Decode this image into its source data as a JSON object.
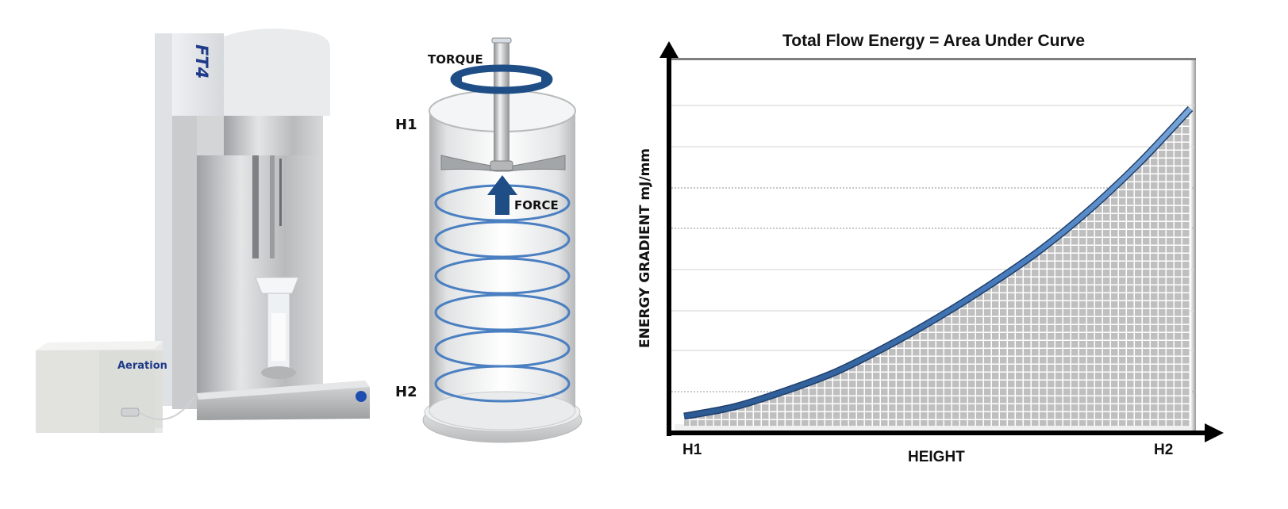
{
  "instrument": {
    "brand_label": "FT4",
    "accessory_label": "Aeration",
    "colors": {
      "body": "#e6e8ea",
      "steel": "#c4c6c8",
      "accent_blue": "#1f3a8a",
      "knob": "#1e4fb0"
    }
  },
  "cell_diagram": {
    "torque_label": "TORQUE",
    "force_label": "FORCE",
    "top_height_label": "H1",
    "bottom_height_label": "H2",
    "colors": {
      "helix": "#4a7fc1",
      "arrow": "#1f4e86",
      "vessel": "#d9dbdd"
    }
  },
  "chart_data": {
    "type": "area",
    "title": "Total Flow Energy = Area Under Curve",
    "xlabel": "HEIGHT",
    "ylabel": "ENERGY GRADIENT mJ/mm",
    "x_tick_labels": [
      "H1",
      "H2"
    ],
    "x": [
      0,
      0.1,
      0.2,
      0.3,
      0.4,
      0.5,
      0.6,
      0.7,
      0.8,
      0.9,
      1.0
    ],
    "series": [
      {
        "name": "Energy gradient",
        "values": [
          0.03,
          0.06,
          0.11,
          0.17,
          0.25,
          0.34,
          0.44,
          0.55,
          0.68,
          0.83,
          1.0
        ]
      }
    ],
    "ylim": [
      0,
      1.05
    ],
    "grid": true,
    "gridlines_count": 8,
    "fill": "hatched-grid-under-curve",
    "legend": "none",
    "colors": {
      "line": "#4a7fc1",
      "fill": "#bfbfbf",
      "grid": "#d9d9d9",
      "axis": "#000000"
    }
  }
}
